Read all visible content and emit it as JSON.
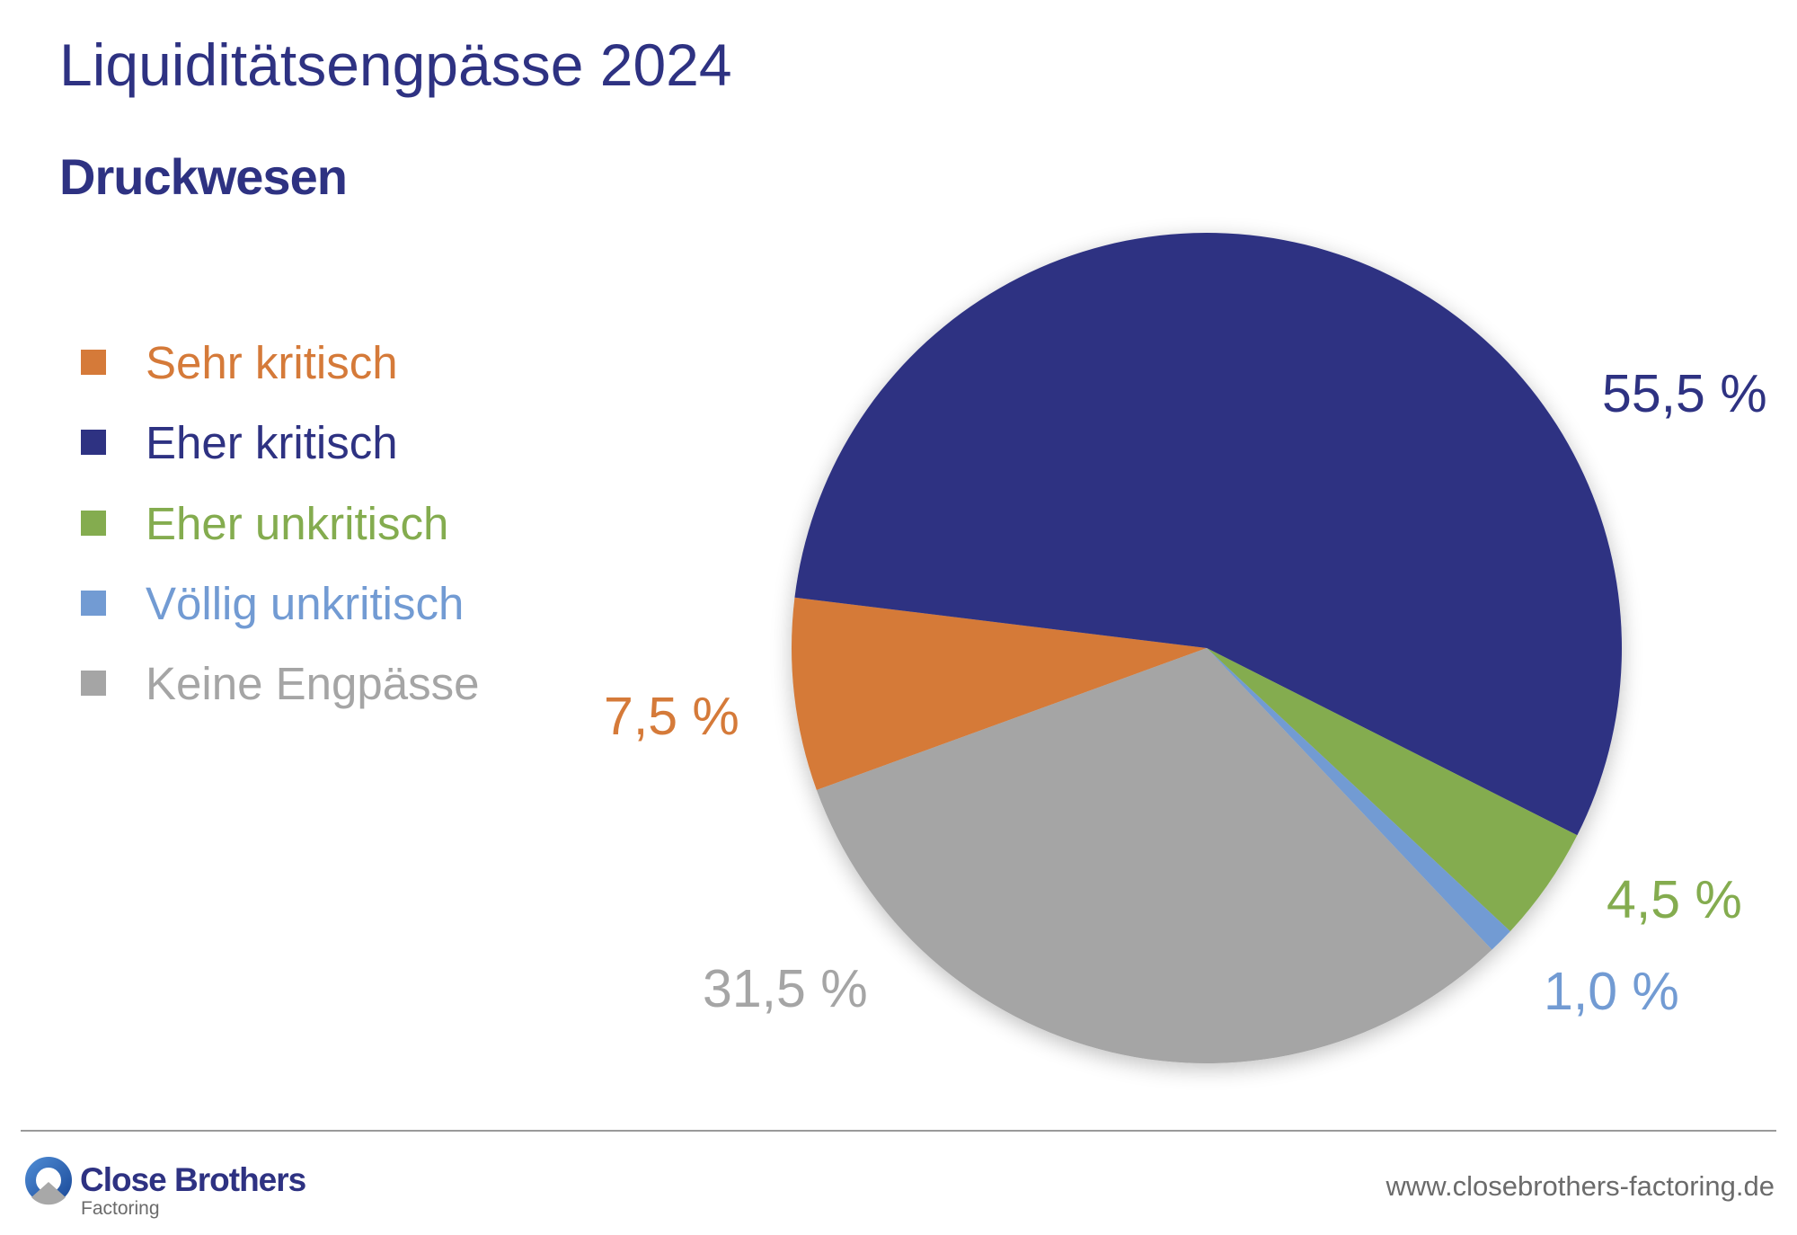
{
  "header": {
    "title": "Liquiditätsengpässe 2024",
    "subtitle": "Druckwesen"
  },
  "chart_data": {
    "type": "pie",
    "title": "Liquiditätsengpässe 2024",
    "subtitle": "Druckwesen",
    "legend_position": "left",
    "start_angle_deg_clockwise_from_top": 250,
    "slices": [
      {
        "label": "Sehr kritisch",
        "value": 7.5,
        "value_label": "7,5 %",
        "color": "#D57A39"
      },
      {
        "label": "Eher kritisch",
        "value": 55.5,
        "value_label": "55,5 %",
        "color": "#2E3282"
      },
      {
        "label": "Eher unkritisch",
        "value": 4.5,
        "value_label": "4,5 %",
        "color": "#84AC4F"
      },
      {
        "label": "Völlig unkritisch",
        "value": 1.0,
        "value_label": "1,0 %",
        "color": "#729BD3"
      },
      {
        "label": "Keine Engpässe",
        "value": 31.5,
        "value_label": "31,5 %",
        "color": "#A5A5A5"
      }
    ]
  },
  "footer": {
    "brand": "Close Brothers",
    "brand_sub": "Factoring",
    "url": "www.closebrothers-factoring.de"
  }
}
